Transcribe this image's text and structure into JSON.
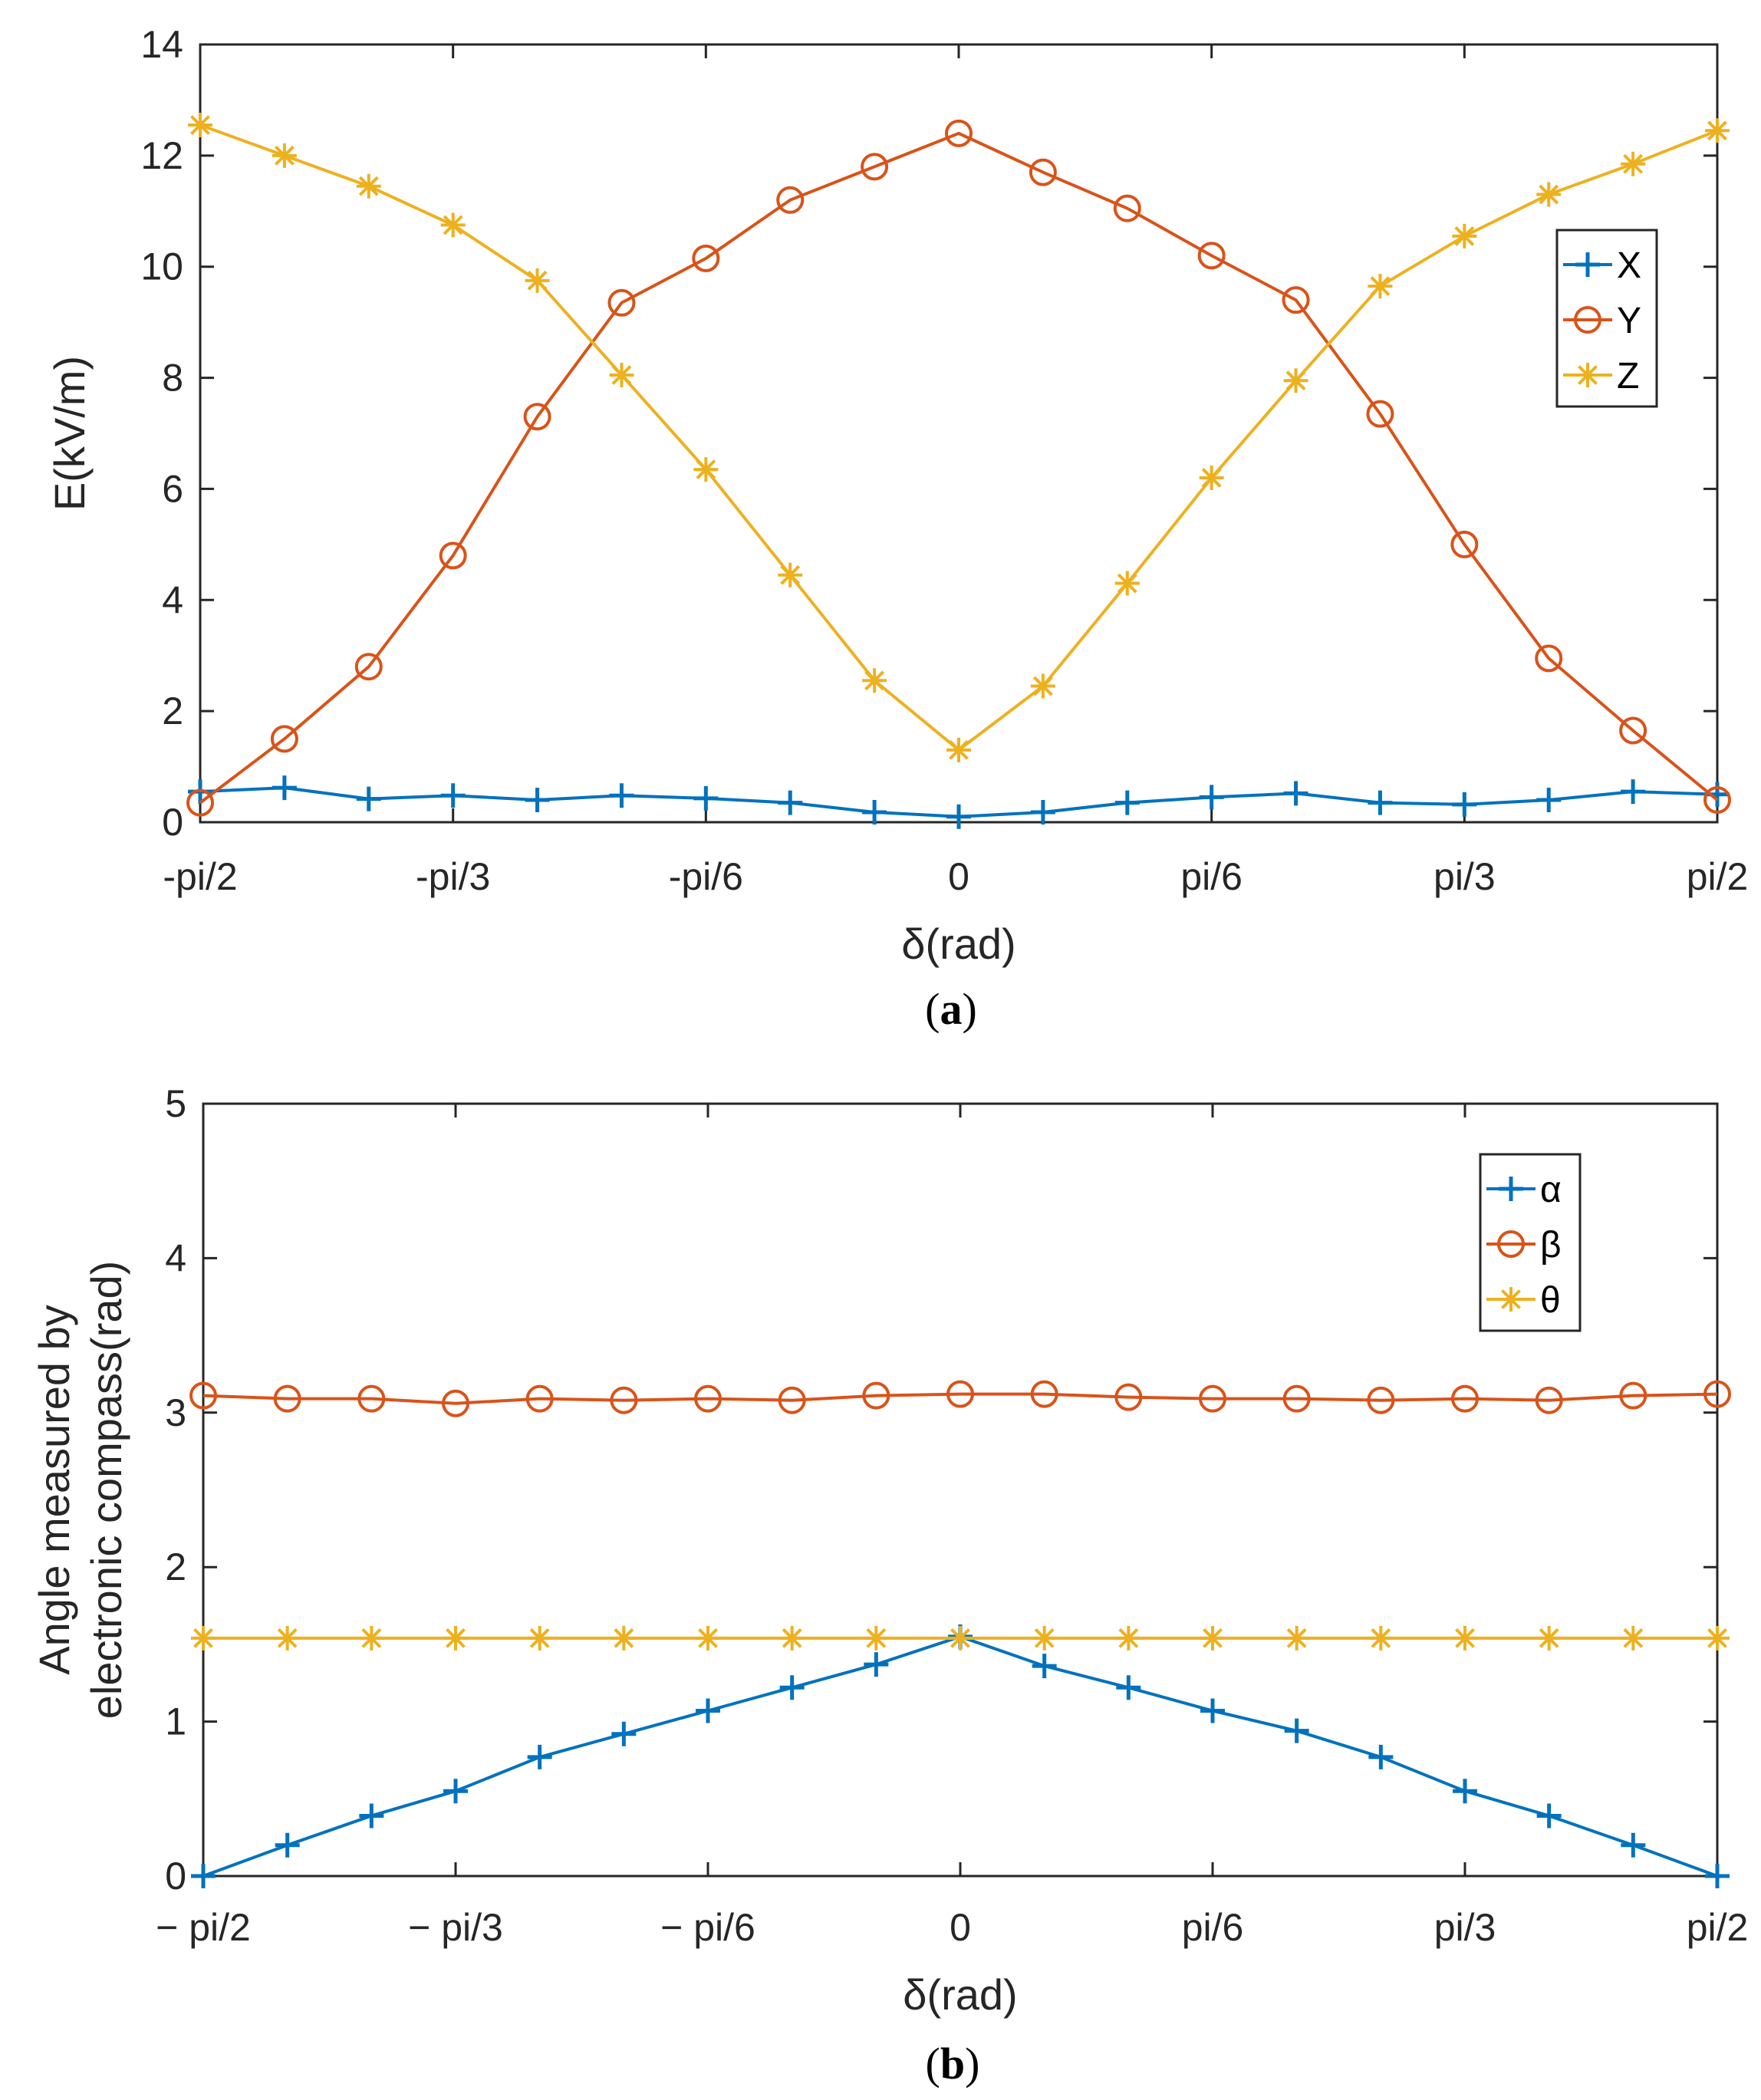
{
  "colors": {
    "X": "#0072BD",
    "Y": "#D95319",
    "Z": "#EDB120",
    "axis": "#262626"
  },
  "chart_data": [
    {
      "type": "line",
      "caption": "(a)",
      "caption_letter": "a",
      "xlabel": "δ(rad)",
      "ylabel": "E(kV/m)",
      "xlim": [
        -90,
        90
      ],
      "x_unit": "degrees of δ (ticks shown in radians)",
      "x": [
        -90,
        -80,
        -70,
        -60,
        -50,
        -40,
        -30,
        -20,
        -10,
        0,
        10,
        20,
        30,
        40,
        50,
        60,
        70,
        80,
        90
      ],
      "xticks": [
        -90,
        -60,
        -30,
        0,
        30,
        60,
        90
      ],
      "xtick_labels": [
        "-pi/2",
        "-pi/3",
        "-pi/6",
        "0",
        "pi/6",
        "pi/3",
        "pi/2"
      ],
      "ylim": [
        0,
        14
      ],
      "yticks": [
        0,
        2,
        4,
        6,
        8,
        10,
        12,
        14
      ],
      "ytick_labels": [
        "0",
        "2",
        "4",
        "6",
        "8",
        "10",
        "12",
        "14"
      ],
      "legend_position": "right",
      "series": [
        {
          "name": "X",
          "marker": "plus",
          "values": [
            0.55,
            0.62,
            0.42,
            0.48,
            0.4,
            0.48,
            0.43,
            0.35,
            0.18,
            0.1,
            0.18,
            0.35,
            0.45,
            0.52,
            0.35,
            0.32,
            0.4,
            0.55,
            0.5
          ]
        },
        {
          "name": "Y",
          "marker": "circle",
          "values": [
            0.35,
            1.5,
            2.8,
            4.8,
            7.3,
            9.35,
            10.15,
            11.2,
            11.8,
            12.4,
            11.7,
            11.05,
            10.2,
            9.4,
            7.35,
            5.0,
            2.95,
            1.65,
            0.4
          ]
        },
        {
          "name": "Z",
          "marker": "asterisk",
          "values": [
            12.55,
            12.0,
            11.45,
            10.75,
            9.75,
            8.05,
            6.35,
            4.45,
            2.55,
            1.3,
            2.45,
            4.3,
            6.2,
            7.95,
            9.65,
            10.55,
            11.3,
            11.85,
            12.45
          ]
        }
      ]
    },
    {
      "type": "line",
      "caption": "(b)",
      "caption_letter": "b",
      "xlabel": "δ(rad)",
      "ylabel_line1": "Angle measured by",
      "ylabel_line2": "electronic compass(rad)",
      "xlim": [
        -90,
        90
      ],
      "x": [
        -90,
        -80,
        -70,
        -60,
        -50,
        -40,
        -30,
        -20,
        -10,
        0,
        10,
        20,
        30,
        40,
        50,
        60,
        70,
        80,
        90
      ],
      "xticks": [
        -90,
        -60,
        -30,
        0,
        30,
        60,
        90
      ],
      "xtick_labels": [
        "− pi/2",
        "− pi/3",
        "− pi/6",
        "0",
        "pi/6",
        "pi/3",
        "pi/2"
      ],
      "ylim": [
        0,
        5
      ],
      "yticks": [
        0,
        1,
        2,
        3,
        4,
        5
      ],
      "ytick_labels": [
        "0",
        "1",
        "2",
        "3",
        "4",
        "5"
      ],
      "legend_position": "top-right",
      "series": [
        {
          "name": "α",
          "marker": "plus",
          "values": [
            0.0,
            0.2,
            0.39,
            0.55,
            0.77,
            0.92,
            1.07,
            1.22,
            1.37,
            1.55,
            1.36,
            1.22,
            1.07,
            0.94,
            0.77,
            0.55,
            0.39,
            0.2,
            0.0
          ]
        },
        {
          "name": "β",
          "marker": "circle",
          "values": [
            3.11,
            3.09,
            3.09,
            3.06,
            3.09,
            3.08,
            3.09,
            3.08,
            3.11,
            3.12,
            3.12,
            3.1,
            3.09,
            3.09,
            3.08,
            3.09,
            3.08,
            3.11,
            3.12
          ]
        },
        {
          "name": "θ",
          "marker": "asterisk",
          "values": [
            1.54,
            1.54,
            1.54,
            1.54,
            1.54,
            1.54,
            1.54,
            1.54,
            1.54,
            1.54,
            1.54,
            1.54,
            1.54,
            1.54,
            1.54,
            1.54,
            1.54,
            1.54,
            1.54
          ]
        }
      ]
    }
  ]
}
